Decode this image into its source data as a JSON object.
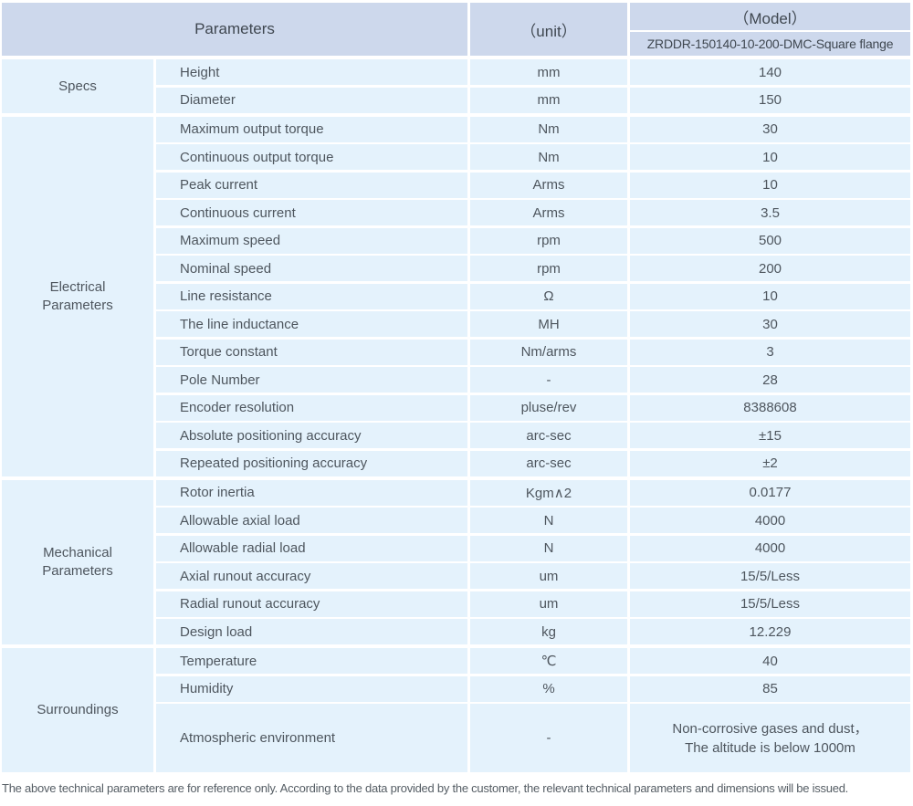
{
  "table": {
    "header": {
      "parameters": "Parameters",
      "unit": "（unit）",
      "model": "（Model）",
      "model_number": "ZRDDR-150140-10-200-DMC-Square flange"
    },
    "sections": [
      {
        "label": "Specs",
        "rows": [
          {
            "param": "Height",
            "unit": "mm",
            "value": "140"
          },
          {
            "param": "Diameter",
            "unit": "mm",
            "value": "150"
          }
        ]
      },
      {
        "label": "Electrical\nParameters",
        "rows": [
          {
            "param": "Maximum output torque",
            "unit": "Nm",
            "value": "30"
          },
          {
            "param": "Continuous output torque",
            "unit": "Nm",
            "value": "10"
          },
          {
            "param": "Peak current",
            "unit": "Arms",
            "value": "10"
          },
          {
            "param": "Continuous current",
            "unit": "Arms",
            "value": "3.5"
          },
          {
            "param": "Maximum speed",
            "unit": "rpm",
            "value": "500"
          },
          {
            "param": "Nominal speed",
            "unit": "rpm",
            "value": "200"
          },
          {
            "param": "Line resistance",
            "unit": "Ω",
            "value": "10"
          },
          {
            "param": "The line inductance",
            "unit": "MH",
            "value": "30"
          },
          {
            "param": "Torque constant",
            "unit": "Nm/arms",
            "value": "3"
          },
          {
            "param": "Pole Number",
            "unit": "-",
            "value": "28"
          },
          {
            "param": "Encoder resolution",
            "unit": "pluse/rev",
            "value": "8388608"
          },
          {
            "param": "Absolute positioning accuracy",
            "unit": "arc-sec",
            "value": "±15"
          },
          {
            "param": "Repeated positioning accuracy",
            "unit": "arc-sec",
            "value": "±2"
          }
        ]
      },
      {
        "label": "Mechanical\nParameters",
        "rows": [
          {
            "param": "Rotor inertia",
            "unit": "Kgm∧2",
            "value": "0.0177"
          },
          {
            "param": "Allowable axial load",
            "unit": "N",
            "value": "4000"
          },
          {
            "param": "Allowable radial load",
            "unit": "N",
            "value": "4000"
          },
          {
            "param": "Axial runout accuracy",
            "unit": "um",
            "value": "15/5/Less"
          },
          {
            "param": "Radial runout accuracy",
            "unit": "um",
            "value": "15/5/Less"
          },
          {
            "param": "Design load",
            "unit": "kg",
            "value": "12.229"
          }
        ]
      },
      {
        "label": "Surroundings",
        "rows": [
          {
            "param": "Temperature",
            "unit": "℃",
            "value": "40"
          },
          {
            "param": "Humidity",
            "unit": "%",
            "value": "85"
          },
          {
            "param": "Atmospheric environment",
            "unit": "-",
            "value": "Non-corrosive gases and dust，\nThe altitude is below 1000m"
          }
        ]
      }
    ]
  },
  "footnote": "The above technical parameters are for reference only. According to the data provided by the customer, the relevant technical parameters and dimensions will be issued.",
  "colors": {
    "header_bg": "#cdd8ec",
    "cell_bg": "#e4f2fc",
    "text": "#4e565e"
  }
}
